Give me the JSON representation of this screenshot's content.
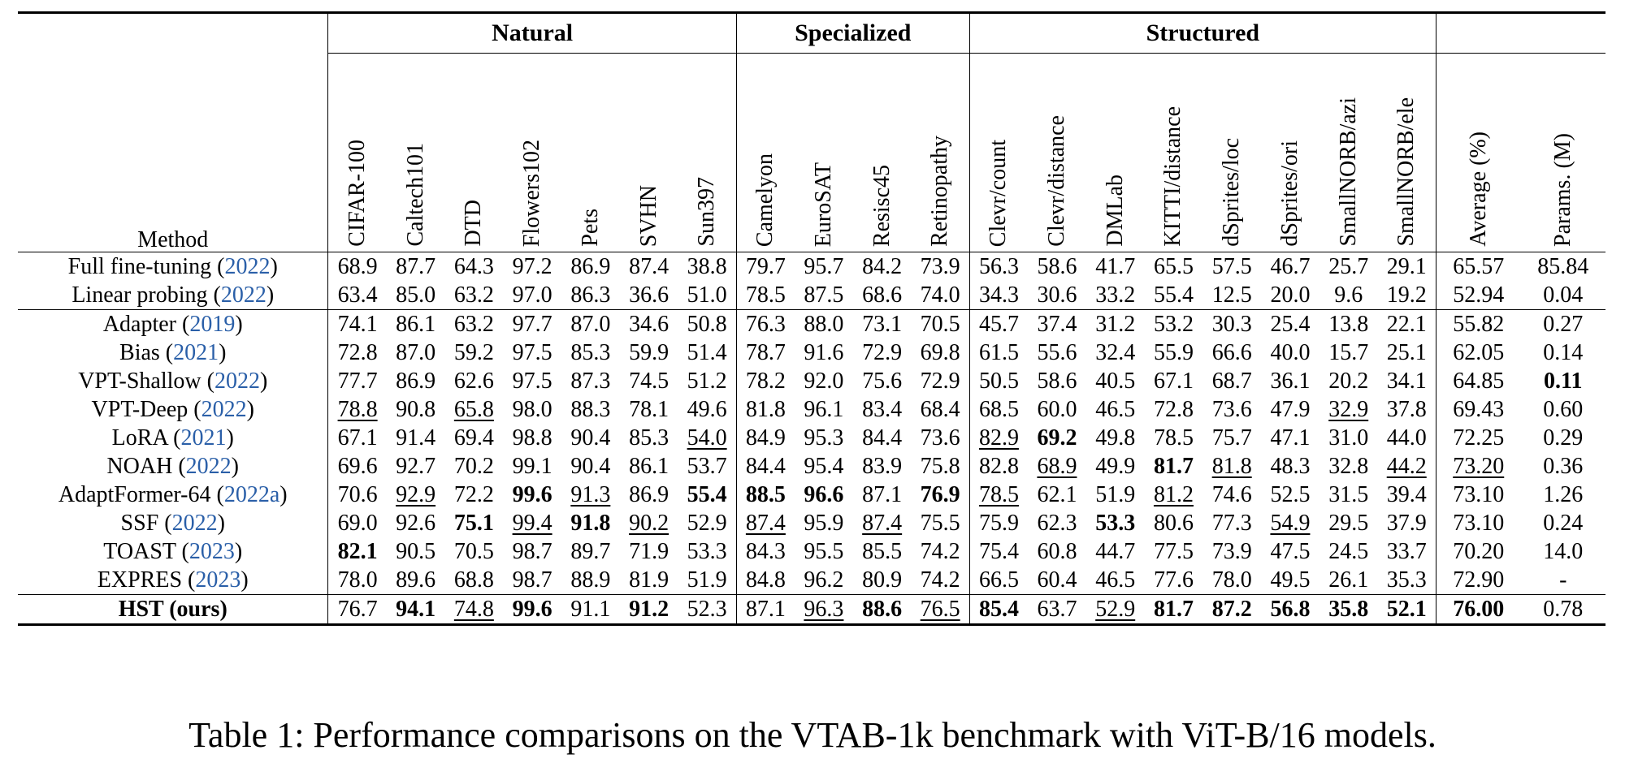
{
  "groups": [
    {
      "label": "",
      "span": 1
    },
    {
      "label": "Natural",
      "span": 7
    },
    {
      "label": "Specialized",
      "span": 4
    },
    {
      "label": "Structured",
      "span": 8
    },
    {
      "label": "",
      "span": 2
    }
  ],
  "method_header": "Method",
  "columns": [
    "CIFAR-100",
    "Caltech101",
    "DTD",
    "Flowers102",
    "Pets",
    "SVHN",
    "Sun397",
    "Camelyon",
    "EuroSAT",
    "Resisc45",
    "Retinopathy",
    "Clevr/count",
    "Clevr/distance",
    "DMLab",
    "KITTI/distance",
    "dSprites/loc",
    "dSprites/ori",
    "SmallNORB/azi",
    "SmallNORB/ele",
    "Average (%)",
    "Params. (M)"
  ],
  "row_groups": [
    [
      {
        "name": "Full fine-tuning",
        "cite": "2022",
        "values": [
          "68.9",
          "87.7",
          "64.3",
          "97.2",
          "86.9",
          "87.4",
          "38.8",
          "79.7",
          "95.7",
          "84.2",
          "73.9",
          "56.3",
          "58.6",
          "41.7",
          "65.5",
          "57.5",
          "46.7",
          "25.7",
          "29.1",
          "65.57",
          "85.84"
        ],
        "fmt": {}
      },
      {
        "name": "Linear probing",
        "cite": "2022",
        "values": [
          "63.4",
          "85.0",
          "63.2",
          "97.0",
          "86.3",
          "36.6",
          "51.0",
          "78.5",
          "87.5",
          "68.6",
          "74.0",
          "34.3",
          "30.6",
          "33.2",
          "55.4",
          "12.5",
          "20.0",
          "9.6",
          "19.2",
          "52.94",
          "0.04"
        ],
        "fmt": {}
      }
    ],
    [
      {
        "name": "Adapter",
        "cite": "2019",
        "values": [
          "74.1",
          "86.1",
          "63.2",
          "97.7",
          "87.0",
          "34.6",
          "50.8",
          "76.3",
          "88.0",
          "73.1",
          "70.5",
          "45.7",
          "37.4",
          "31.2",
          "53.2",
          "30.3",
          "25.4",
          "13.8",
          "22.1",
          "55.82",
          "0.27"
        ],
        "fmt": {}
      },
      {
        "name": "Bias",
        "cite": "2021",
        "values": [
          "72.8",
          "87.0",
          "59.2",
          "97.5",
          "85.3",
          "59.9",
          "51.4",
          "78.7",
          "91.6",
          "72.9",
          "69.8",
          "61.5",
          "55.6",
          "32.4",
          "55.9",
          "66.6",
          "40.0",
          "15.7",
          "25.1",
          "62.05",
          "0.14"
        ],
        "fmt": {}
      },
      {
        "name": "VPT-Shallow",
        "cite": "2022",
        "values": [
          "77.7",
          "86.9",
          "62.6",
          "97.5",
          "87.3",
          "74.5",
          "51.2",
          "78.2",
          "92.0",
          "75.6",
          "72.9",
          "50.5",
          "58.6",
          "40.5",
          "67.1",
          "68.7",
          "36.1",
          "20.2",
          "34.1",
          "64.85",
          "0.11"
        ],
        "fmt": {
          "20": "b"
        }
      },
      {
        "name": "VPT-Deep",
        "cite": "2022",
        "values": [
          "78.8",
          "90.8",
          "65.8",
          "98.0",
          "88.3",
          "78.1",
          "49.6",
          "81.8",
          "96.1",
          "83.4",
          "68.4",
          "68.5",
          "60.0",
          "46.5",
          "72.8",
          "73.6",
          "47.9",
          "32.9",
          "37.8",
          "69.43",
          "0.60"
        ],
        "fmt": {
          "0": "u",
          "2": "u",
          "17": "u"
        }
      },
      {
        "name": "LoRA",
        "cite": "2021",
        "values": [
          "67.1",
          "91.4",
          "69.4",
          "98.8",
          "90.4",
          "85.3",
          "54.0",
          "84.9",
          "95.3",
          "84.4",
          "73.6",
          "82.9",
          "69.2",
          "49.8",
          "78.5",
          "75.7",
          "47.1",
          "31.0",
          "44.0",
          "72.25",
          "0.29"
        ],
        "fmt": {
          "6": "u",
          "11": "u",
          "12": "b"
        }
      },
      {
        "name": "NOAH",
        "cite": "2022",
        "values": [
          "69.6",
          "92.7",
          "70.2",
          "99.1",
          "90.4",
          "86.1",
          "53.7",
          "84.4",
          "95.4",
          "83.9",
          "75.8",
          "82.8",
          "68.9",
          "49.9",
          "81.7",
          "81.8",
          "48.3",
          "32.8",
          "44.2",
          "73.20",
          "0.36"
        ],
        "fmt": {
          "12": "u",
          "14": "b",
          "15": "u",
          "18": "u",
          "19": "u"
        }
      },
      {
        "name": "AdaptFormer-64",
        "cite": "2022a",
        "values": [
          "70.6",
          "92.9",
          "72.2",
          "99.6",
          "91.3",
          "86.9",
          "55.4",
          "88.5",
          "96.6",
          "87.1",
          "76.9",
          "78.5",
          "62.1",
          "51.9",
          "81.2",
          "74.6",
          "52.5",
          "31.5",
          "39.4",
          "73.10",
          "1.26"
        ],
        "fmt": {
          "1": "u",
          "3": "b",
          "4": "u",
          "6": "b",
          "7": "b",
          "8": "b",
          "10": "b",
          "11": "u",
          "14": "u"
        }
      },
      {
        "name": "SSF",
        "cite": "2022",
        "values": [
          "69.0",
          "92.6",
          "75.1",
          "99.4",
          "91.8",
          "90.2",
          "52.9",
          "87.4",
          "95.9",
          "87.4",
          "75.5",
          "75.9",
          "62.3",
          "53.3",
          "80.6",
          "77.3",
          "54.9",
          "29.5",
          "37.9",
          "73.10",
          "0.24"
        ],
        "fmt": {
          "2": "b",
          "3": "u",
          "4": "b",
          "5": "u",
          "7": "u",
          "9": "u",
          "13": "b",
          "16": "u"
        }
      },
      {
        "name": "TOAST",
        "cite": "2023",
        "values": [
          "82.1",
          "90.5",
          "70.5",
          "98.7",
          "89.7",
          "71.9",
          "53.3",
          "84.3",
          "95.5",
          "85.5",
          "74.2",
          "75.4",
          "60.8",
          "44.7",
          "77.5",
          "73.9",
          "47.5",
          "24.5",
          "33.7",
          "70.20",
          "14.0"
        ],
        "fmt": {
          "0": "b"
        }
      },
      {
        "name": "EXPRES",
        "cite": "2023",
        "values": [
          "78.0",
          "89.6",
          "68.8",
          "98.7",
          "88.9",
          "81.9",
          "51.9",
          "84.8",
          "96.2",
          "80.9",
          "74.2",
          "66.5",
          "60.4",
          "46.5",
          "77.6",
          "78.0",
          "49.5",
          "26.1",
          "35.3",
          "72.90",
          "-"
        ],
        "fmt": {}
      }
    ],
    [
      {
        "name": "HST",
        "suffix": "(ours)",
        "values": [
          "76.7",
          "94.1",
          "74.8",
          "99.6",
          "91.1",
          "91.2",
          "52.3",
          "87.1",
          "96.3",
          "88.6",
          "76.5",
          "85.4",
          "63.7",
          "52.9",
          "81.7",
          "87.2",
          "56.8",
          "35.8",
          "52.1",
          "76.00",
          "0.78"
        ],
        "fmt": {
          "1": "b",
          "2": "u",
          "3": "b",
          "5": "b",
          "8": "u",
          "9": "b",
          "10": "u",
          "11": "b",
          "13": "u",
          "14": "b",
          "15": "b",
          "16": "b",
          "17": "b",
          "18": "b",
          "19": "b"
        }
      }
    ]
  ],
  "caption": "Table 1: Performance comparisons on the VTAB-1k benchmark with ViT-B/16 models."
}
